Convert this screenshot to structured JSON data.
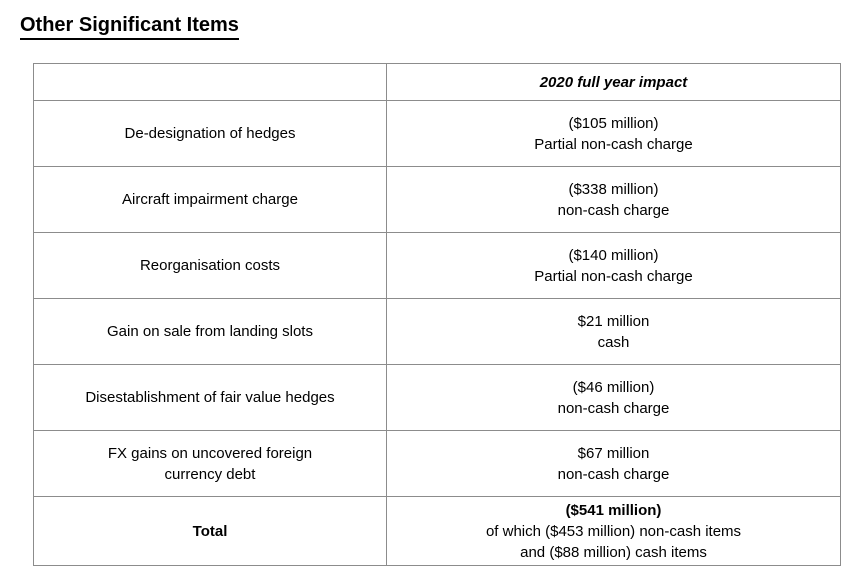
{
  "title": "Other Significant Items",
  "table": {
    "header": {
      "item_label": "",
      "value_label": "2020 full year impact"
    },
    "rows": [
      {
        "item": "De-designation of hedges",
        "amount": "($105 million)",
        "note": "Partial non-cash charge"
      },
      {
        "item": "Aircraft impairment charge",
        "amount": "($338 million)",
        "note": "non-cash charge"
      },
      {
        "item": "Reorganisation costs",
        "amount": "($140 million)",
        "note": "Partial non-cash charge"
      },
      {
        "item": "Gain on sale from landing slots",
        "amount": "$21 million",
        "note": "cash"
      },
      {
        "item": "Disestablishment of fair value hedges",
        "amount": "($46 million)",
        "note": "non-cash charge"
      },
      {
        "item": "FX gains on uncovered foreign\ncurrency debt",
        "amount": "$67 million",
        "note": "non-cash charge"
      }
    ],
    "total_row": {
      "item": "Total",
      "amount": "($541 million)",
      "note_line1": "of which ($453 million) non-cash items",
      "note_line2": "and ($88 million) cash items"
    }
  },
  "colors": {
    "background": "#ffffff",
    "text": "#000000",
    "table_border": "#8c8c8c"
  }
}
